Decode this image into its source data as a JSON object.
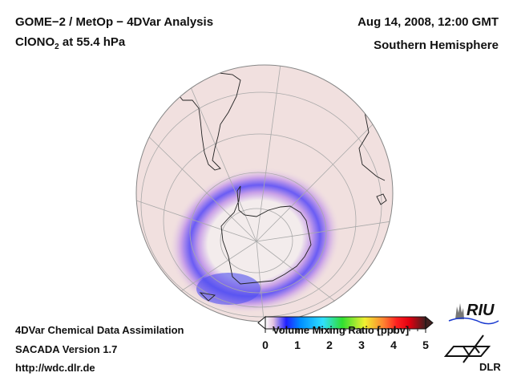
{
  "header": {
    "title_line1": "GOME−2 / MetOp − 4DVar Analysis",
    "species": "ClONO",
    "species_sub": "2",
    "level": " at 55.4 hPa",
    "datetime": "Aug 14, 2008, 12:00 GMT",
    "region": "Southern Hemisphere"
  },
  "footer": {
    "line1": "4DVar Chemical Data Assimilation",
    "line2": "SACADA Version 1.7",
    "line3": "http://wdc.dlr.de"
  },
  "colorbar": {
    "title": "Volume Mixing Ratio [ppbv]",
    "ticks": [
      "0",
      "1",
      "2",
      "3",
      "4",
      "5"
    ],
    "range": [
      0,
      5
    ],
    "colors": [
      "#ffffff",
      "#e8c8e0",
      "#2020ff",
      "#0090ff",
      "#30e0ff",
      "#30e030",
      "#f0f030",
      "#ff8030",
      "#ff2020",
      "#e00010",
      "#402020"
    ]
  },
  "logos": {
    "riu": "RIU",
    "dlr": "DLR"
  },
  "map": {
    "projection": "orthographic",
    "hemisphere": "south",
    "colors": {
      "background": "#f1e0df",
      "vortex_ring": "#6a5cf4",
      "vortex_inner": "#f2ecec",
      "coast": "#222222",
      "grid": "#a9a9a9"
    }
  }
}
